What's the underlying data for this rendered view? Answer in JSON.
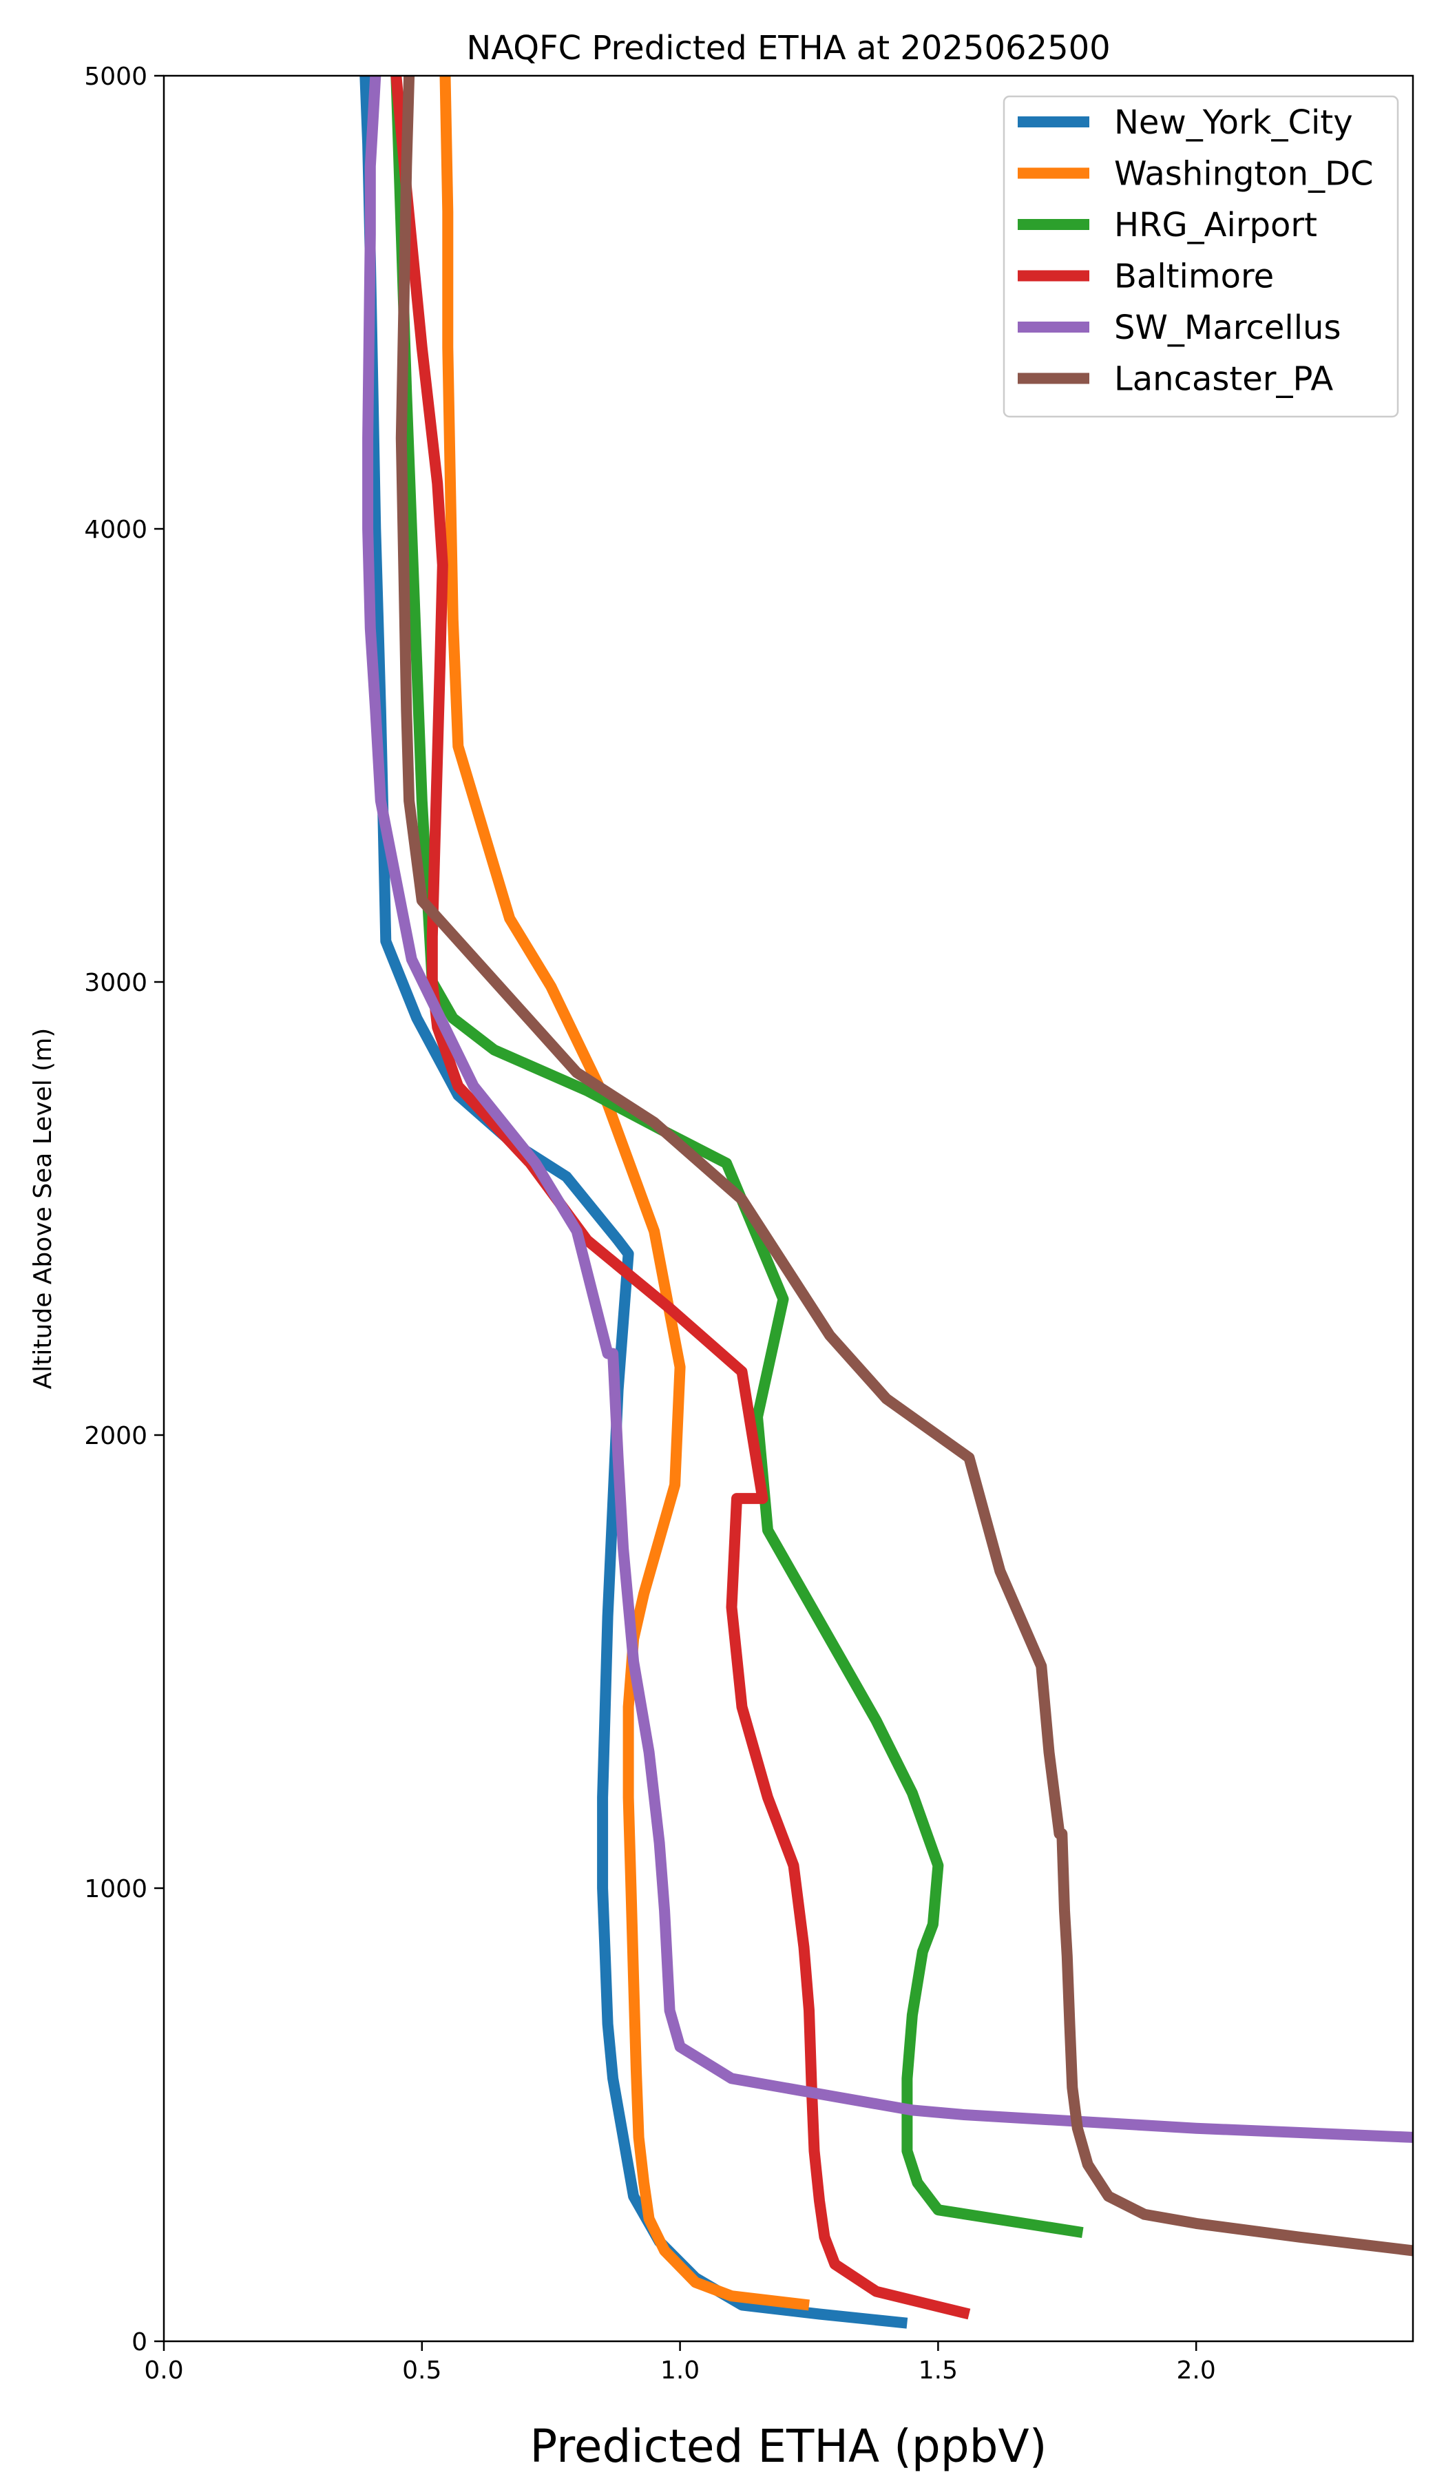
{
  "chart_data": {
    "type": "line",
    "title": "NAQFC Predicted ETHA at 2025062500",
    "xlabel": "Predicted ETHA (ppbV)",
    "ylabel": "Altitude Above Sea Level (m)",
    "xlim": [
      0,
      2.42
    ],
    "ylim": [
      0,
      5000
    ],
    "xticks": [
      0,
      0.5,
      1.0,
      1.5,
      2.0
    ],
    "xtick_labels": [
      "0.0",
      "0.5",
      "1.0",
      "1.5",
      "2.0"
    ],
    "yticks": [
      0,
      1000,
      2000,
      3000,
      4000,
      5000
    ],
    "ytick_labels": [
      "0",
      "1000",
      "2000",
      "3000",
      "4000",
      "5000"
    ],
    "grid": false,
    "legend_position": "top-right",
    "series": [
      {
        "name": "New_York_City",
        "color": "#1f77b4",
        "x": [
          1.44,
          1.27,
          1.12,
          1.03,
          0.96,
          0.91,
          0.89,
          0.87,
          0.86,
          0.855,
          0.85,
          0.85,
          0.855,
          0.86,
          0.87,
          0.88,
          0.89,
          0.9,
          0.88,
          0.78,
          0.67,
          0.57,
          0.49,
          0.43,
          0.425,
          0.42,
          0.415,
          0.41,
          0.405,
          0.4,
          0.395,
          0.39
        ],
        "y": [
          40,
          60,
          80,
          140,
          220,
          320,
          450,
          580,
          700,
          850,
          1000,
          1200,
          1400,
          1600,
          1850,
          2100,
          2250,
          2400,
          2430,
          2570,
          2650,
          2750,
          2920,
          3090,
          3350,
          3600,
          3800,
          4000,
          4300,
          4600,
          4850,
          5000
        ]
      },
      {
        "name": "Washington_DC",
        "color": "#ff7f0e",
        "x": [
          1.25,
          1.1,
          1.03,
          0.97,
          0.94,
          0.93,
          0.92,
          0.915,
          0.91,
          0.905,
          0.9,
          0.9,
          0.91,
          0.93,
          0.99,
          1.0,
          0.95,
          0.86,
          0.75,
          0.67,
          0.57,
          0.56,
          0.555,
          0.55,
          0.55,
          0.545
        ],
        "y": [
          80,
          100,
          130,
          200,
          270,
          350,
          450,
          600,
          800,
          1000,
          1200,
          1400,
          1550,
          1650,
          1890,
          2150,
          2450,
          2730,
          2990,
          3140,
          3520,
          3800,
          4100,
          4400,
          4700,
          5000
        ]
      },
      {
        "name": "HRG_Airport",
        "color": "#2ca02c",
        "x": [
          1.78,
          1.5,
          1.46,
          1.44,
          1.44,
          1.45,
          1.47,
          1.49,
          1.5,
          1.5,
          1.45,
          1.38,
          1.28,
          1.17,
          1.15,
          1.2,
          1.09,
          0.97,
          0.82,
          0.64,
          0.56,
          0.52,
          0.51,
          0.5,
          0.49,
          0.48,
          0.47,
          0.46,
          0.45
        ],
        "y": [
          240,
          290,
          350,
          420,
          580,
          720,
          860,
          920,
          1050,
          1050,
          1210,
          1370,
          1570,
          1790,
          2040,
          2300,
          2600,
          2670,
          2760,
          2850,
          2920,
          3000,
          3200,
          3400,
          3700,
          4000,
          4300,
          4650,
          5000
        ]
      },
      {
        "name": "Baltimore",
        "color": "#d62728",
        "x": [
          1.56,
          1.38,
          1.3,
          1.28,
          1.27,
          1.26,
          1.255,
          1.25,
          1.24,
          1.22,
          1.17,
          1.12,
          1.1,
          1.1,
          1.11,
          1.16,
          1.12,
          0.98,
          0.82,
          0.71,
          0.57,
          0.53,
          0.52,
          0.52,
          0.525,
          0.53,
          0.535,
          0.54,
          0.53,
          0.5,
          0.47,
          0.45
        ],
        "y": [
          60,
          110,
          170,
          230,
          310,
          420,
          560,
          730,
          870,
          1050,
          1200,
          1400,
          1620,
          1620,
          1860,
          1860,
          2140,
          2280,
          2430,
          2600,
          2770,
          2900,
          3000,
          3100,
          3300,
          3500,
          3700,
          3920,
          4100,
          4400,
          4750,
          5000
        ]
      },
      {
        "name": "SW_Marcellus",
        "color": "#9467bd",
        "x": [
          2.42,
          2.0,
          1.7,
          1.55,
          1.45,
          1.3,
          1.1,
          1.0,
          0.98,
          0.97,
          0.96,
          0.94,
          0.91,
          0.89,
          0.88,
          0.87,
          0.86,
          0.8,
          0.72,
          0.6,
          0.48,
          0.42,
          0.41,
          0.4,
          0.395,
          0.395,
          0.4,
          0.4,
          0.405,
          0.41
        ],
        "y": [
          450,
          470,
          490,
          500,
          510,
          540,
          580,
          650,
          730,
          950,
          1100,
          1300,
          1500,
          1750,
          1950,
          2180,
          2180,
          2450,
          2600,
          2770,
          3050,
          3400,
          3600,
          3780,
          4000,
          4200,
          4650,
          4800,
          4900,
          5000
        ]
      },
      {
        "name": "Lancaster_PA",
        "color": "#8c564b",
        "x": [
          2.42,
          2.2,
          2.0,
          1.9,
          1.83,
          1.79,
          1.77,
          1.76,
          1.755,
          1.75,
          1.745,
          1.74,
          1.735,
          1.715,
          1.7,
          1.62,
          1.56,
          1.4,
          1.29,
          1.12,
          0.95,
          0.8,
          0.5,
          0.475,
          0.47,
          0.465,
          0.46,
          0.465,
          0.47,
          0.475
        ],
        "y": [
          200,
          230,
          260,
          280,
          320,
          390,
          470,
          560,
          700,
          850,
          950,
          1120,
          1120,
          1300,
          1490,
          1700,
          1950,
          2080,
          2220,
          2520,
          2690,
          2800,
          3180,
          3400,
          3600,
          3900,
          4200,
          4500,
          4800,
          5000
        ]
      }
    ]
  }
}
